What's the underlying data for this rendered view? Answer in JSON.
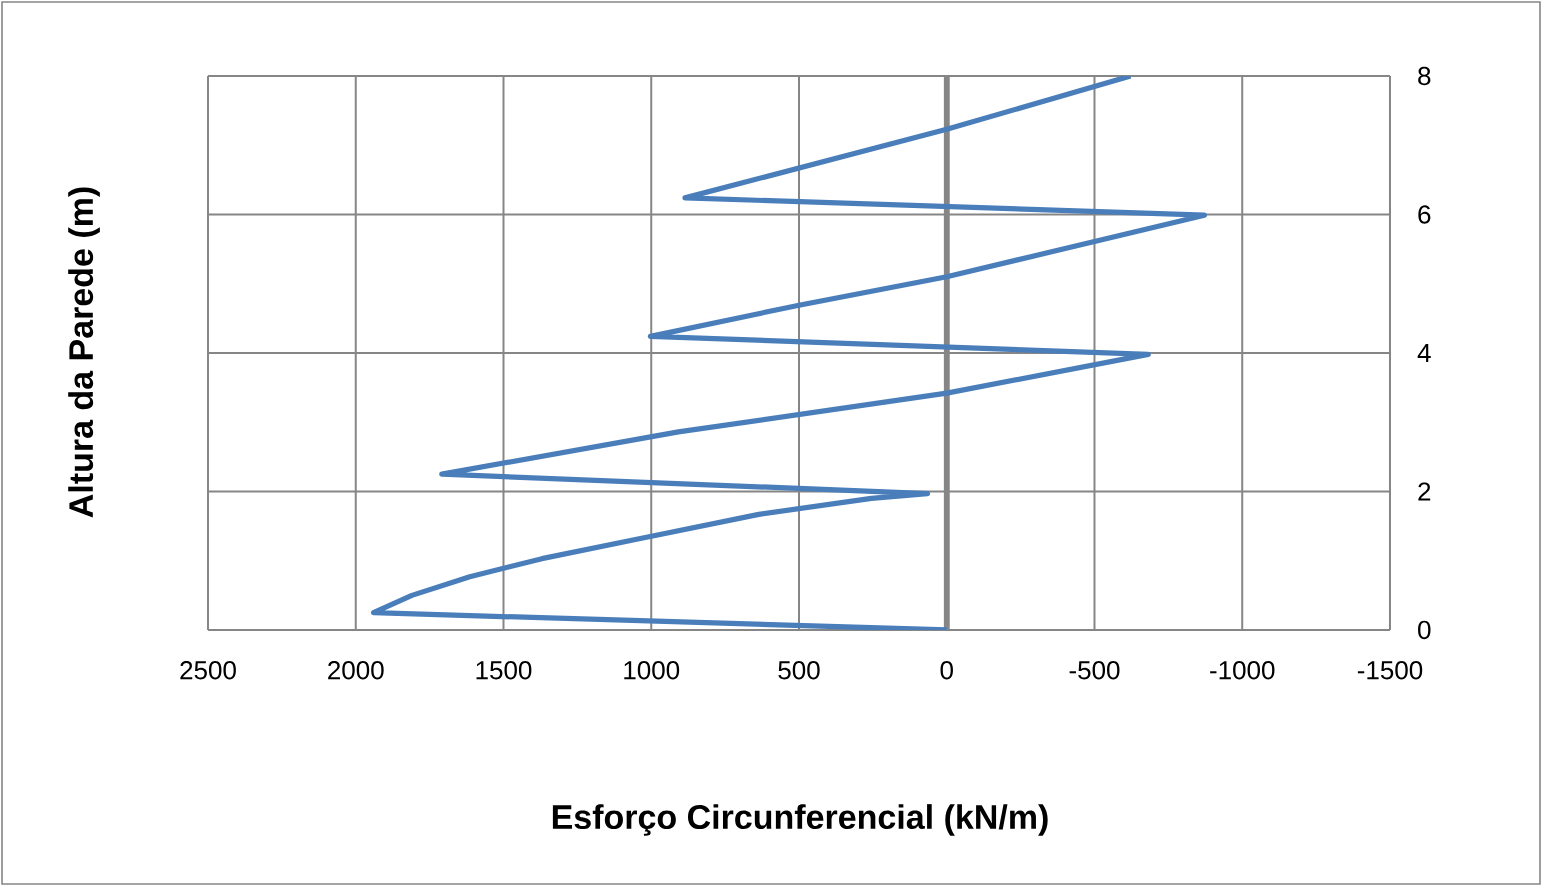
{
  "chart_data": {
    "type": "line",
    "xlabel": "Esforço Circunferencial (kN/m)",
    "ylabel": "Altura da Parede (m)",
    "xlim": [
      2500,
      -1500
    ],
    "xticks": [
      2500,
      2000,
      1500,
      1000,
      500,
      0,
      -500,
      -1000,
      -1500
    ],
    "ylim": [
      0,
      8
    ],
    "yticks": [
      0,
      2,
      4,
      6,
      8
    ],
    "grid": true,
    "ref_lines": [
      {
        "axis": "x",
        "value": 0,
        "color": "#868686"
      }
    ],
    "series": [
      {
        "color": "#4a7ebb",
        "x": [
          0,
          1940,
          1810,
          1614,
          1370,
          1016,
          636,
          255,
          65,
          1709,
          908,
          0,
          -682,
          1003,
          500,
          0,
          -872,
          886,
          0,
          -622
        ],
        "values": [
          0,
          0.25,
          0.5,
          0.77,
          1.03,
          1.34,
          1.67,
          1.9,
          1.97,
          2.25,
          2.86,
          3.42,
          3.98,
          4.24,
          4.69,
          5.1,
          5.99,
          6.24,
          7.23,
          8
        ]
      }
    ]
  }
}
